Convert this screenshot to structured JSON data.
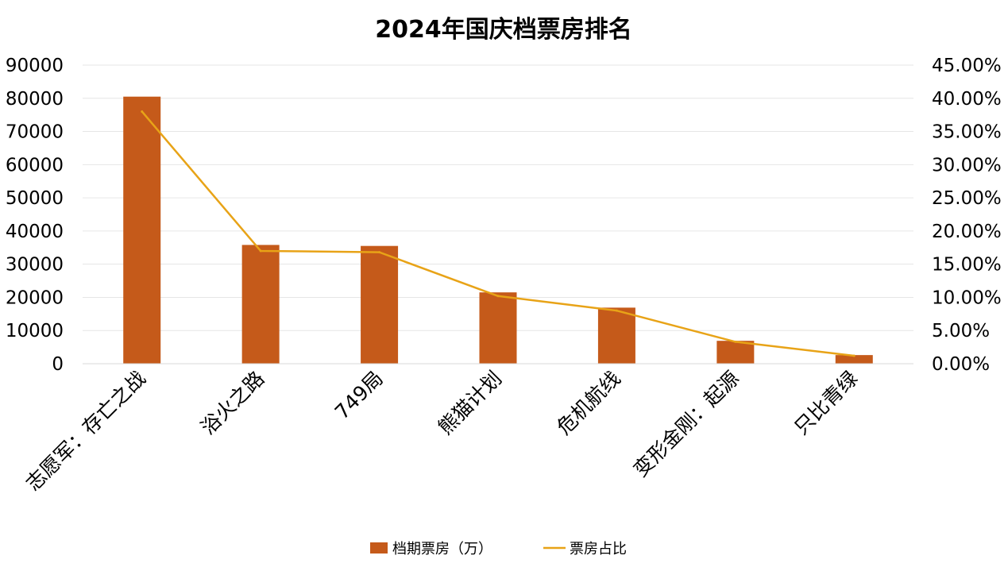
{
  "chart_data": {
    "type": "bar",
    "title": "2024年国庆档票房排名",
    "categories": [
      "志愿军：存亡之战",
      "浴火之路",
      "749局",
      "熊猫计划",
      "危机航线",
      "变形金刚：起源",
      "只比青绿"
    ],
    "series": [
      {
        "name": "档期票房（万）",
        "type": "bar",
        "axis": "left",
        "color": "#C55A1A",
        "values": [
          80500,
          35800,
          35500,
          21500,
          16900,
          6900,
          2600
        ]
      },
      {
        "name": "票房占比",
        "type": "line",
        "axis": "right",
        "color": "#E8A317",
        "values": [
          0.38,
          0.17,
          0.168,
          0.102,
          0.08,
          0.033,
          0.012
        ]
      }
    ],
    "ylim_left": [
      0,
      90000
    ],
    "ylim_right": [
      0,
      0.45
    ],
    "yticks_left": [
      "0",
      "10000",
      "20000",
      "30000",
      "40000",
      "50000",
      "60000",
      "70000",
      "80000",
      "90000"
    ],
    "yticks_right": [
      "0.00%",
      "5.00%",
      "10.00%",
      "15.00%",
      "20.00%",
      "25.00%",
      "30.00%",
      "35.00%",
      "40.00%",
      "45.00%"
    ],
    "grid": true,
    "legend": "bottom"
  }
}
